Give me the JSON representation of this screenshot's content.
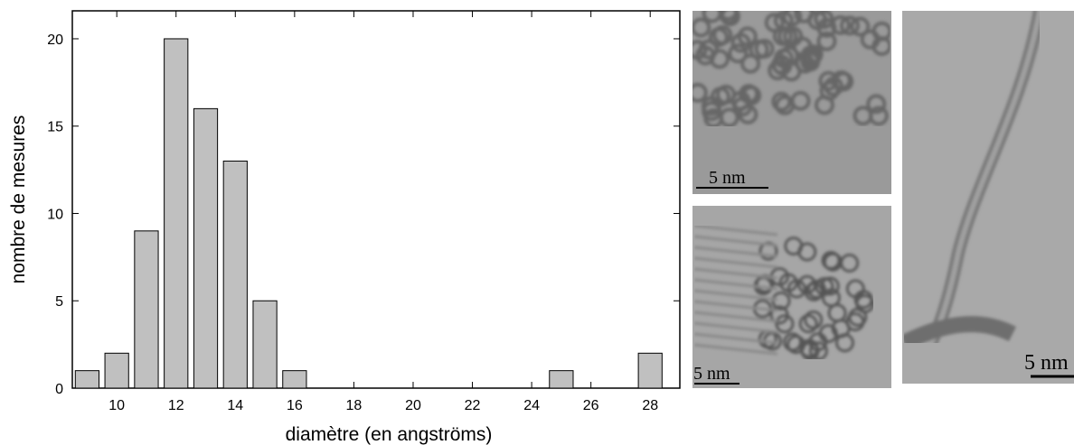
{
  "chart_data": {
    "type": "bar",
    "x_label": "diamètre (en angströms)",
    "y_label": "nombre de mesures",
    "x": [
      9,
      10,
      11,
      12,
      13,
      14,
      15,
      16,
      25,
      28
    ],
    "values": [
      1,
      2,
      9,
      20,
      16,
      13,
      5,
      1,
      1,
      2
    ],
    "color": "#c0c0c0",
    "xlim": [
      8.5,
      29
    ],
    "xticks": [
      10,
      12,
      14,
      16,
      18,
      20,
      22,
      24,
      26,
      28
    ],
    "ylim": [
      0,
      21.6
    ],
    "yticks": [
      0,
      5,
      10,
      15,
      20
    ]
  },
  "images": [
    {
      "scale_label": "5 nm"
    },
    {
      "scale_label": "5 nm"
    },
    {
      "scale_label": "5 nm"
    }
  ]
}
